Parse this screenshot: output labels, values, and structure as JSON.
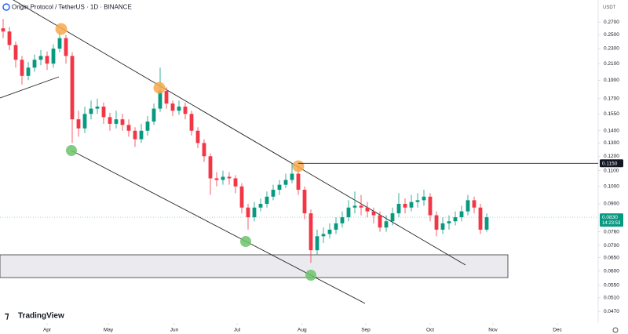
{
  "chart_data": {
    "type": "candlestick",
    "title": "Origin Protocol / TetherUS · 1D · BINANCE",
    "currency": "USDT",
    "brand": "TradingView",
    "log_scale": true,
    "grid": false,
    "up_color": "#089981",
    "down_color": "#f23645",
    "categories": [
      null,
      null,
      null,
      null,
      null,
      null,
      null,
      null,
      null,
      null,
      null,
      null,
      null,
      null,
      null,
      null,
      null,
      null,
      null,
      null,
      null,
      null,
      null,
      null,
      null,
      null,
      null,
      null,
      null,
      null,
      null,
      null,
      null,
      null,
      null,
      null,
      null,
      null,
      null,
      null,
      null,
      null,
      null,
      null,
      null,
      null,
      null,
      null,
      null,
      null,
      null,
      null,
      null,
      null,
      null,
      null,
      null,
      null,
      null,
      null,
      null,
      null,
      null,
      null,
      null,
      null,
      null,
      null,
      null,
      null,
      null,
      null,
      null,
      null,
      null,
      null,
      null,
      null
    ],
    "open": [
      0.26,
      0.255,
      0.235,
      0.215,
      0.195,
      0.205,
      0.215,
      0.22,
      0.21,
      0.23,
      0.245,
      0.22,
      0.15,
      0.142,
      0.155,
      0.16,
      0.162,
      0.152,
      0.146,
      0.15,
      0.145,
      0.14,
      0.133,
      0.14,
      0.148,
      0.16,
      0.178,
      0.165,
      0.158,
      0.162,
      0.155,
      0.14,
      0.13,
      0.12,
      0.105,
      0.104,
      0.106,
      0.105,
      0.1,
      0.088,
      0.083,
      0.088,
      0.09,
      0.094,
      0.098,
      0.101,
      0.104,
      0.108,
      0.098,
      0.085,
      0.068,
      0.074,
      0.075,
      0.077,
      0.08,
      0.083,
      0.088,
      0.089,
      0.088,
      0.086,
      0.084,
      0.078,
      0.081,
      0.085,
      0.09,
      0.088,
      0.091,
      0.092,
      0.094,
      0.084,
      0.077,
      0.08,
      0.081,
      0.083,
      0.086,
      0.092,
      0.088,
      0.077
    ],
    "high": [
      0.275,
      0.262,
      0.24,
      0.22,
      0.212,
      0.222,
      0.228,
      0.226,
      0.236,
      0.255,
      0.25,
      0.225,
      0.158,
      0.162,
      0.168,
      0.17,
      0.166,
      0.156,
      0.158,
      0.155,
      0.15,
      0.143,
      0.146,
      0.153,
      0.165,
      0.205,
      0.182,
      0.168,
      0.168,
      0.166,
      0.158,
      0.143,
      0.133,
      0.122,
      0.109,
      0.11,
      0.109,
      0.107,
      0.102,
      0.09,
      0.091,
      0.093,
      0.097,
      0.101,
      0.104,
      0.108,
      0.115,
      0.112,
      0.1,
      0.087,
      0.077,
      0.078,
      0.08,
      0.083,
      0.086,
      0.092,
      0.097,
      0.095,
      0.091,
      0.088,
      0.086,
      0.084,
      0.088,
      0.096,
      0.093,
      0.095,
      0.096,
      0.098,
      0.096,
      0.086,
      0.083,
      0.084,
      0.086,
      0.089,
      0.095,
      0.094,
      0.09,
      0.085
    ],
    "low": [
      0.245,
      0.228,
      0.205,
      0.185,
      0.19,
      0.2,
      0.208,
      0.202,
      0.205,
      0.225,
      0.21,
      0.13,
      0.135,
      0.138,
      0.15,
      0.155,
      0.146,
      0.14,
      0.142,
      0.14,
      0.135,
      0.127,
      0.13,
      0.136,
      0.145,
      0.157,
      0.16,
      0.153,
      0.154,
      0.15,
      0.136,
      0.126,
      0.116,
      0.095,
      0.1,
      0.101,
      0.101,
      0.096,
      0.085,
      0.077,
      0.081,
      0.086,
      0.088,
      0.092,
      0.095,
      0.099,
      0.102,
      0.095,
      0.082,
      0.063,
      0.066,
      0.071,
      0.073,
      0.075,
      0.078,
      0.081,
      0.085,
      0.084,
      0.083,
      0.08,
      0.076,
      0.076,
      0.079,
      0.083,
      0.085,
      0.086,
      0.088,
      0.089,
      0.081,
      0.074,
      0.075,
      0.077,
      0.079,
      0.081,
      0.084,
      0.085,
      0.075,
      0.076
    ],
    "close": [
      0.255,
      0.235,
      0.215,
      0.195,
      0.205,
      0.215,
      0.22,
      0.21,
      0.23,
      0.245,
      0.22,
      0.15,
      0.142,
      0.155,
      0.16,
      0.162,
      0.152,
      0.146,
      0.15,
      0.145,
      0.14,
      0.133,
      0.14,
      0.148,
      0.16,
      0.178,
      0.165,
      0.158,
      0.162,
      0.155,
      0.14,
      0.13,
      0.12,
      0.105,
      0.104,
      0.106,
      0.105,
      0.1,
      0.088,
      0.083,
      0.088,
      0.09,
      0.094,
      0.098,
      0.101,
      0.104,
      0.108,
      0.098,
      0.085,
      0.068,
      0.074,
      0.075,
      0.077,
      0.08,
      0.083,
      0.088,
      0.089,
      0.088,
      0.086,
      0.084,
      0.078,
      0.081,
      0.085,
      0.09,
      0.088,
      0.091,
      0.092,
      0.094,
      0.084,
      0.077,
      0.08,
      0.081,
      0.083,
      0.086,
      0.092,
      0.088,
      0.077,
      0.083
    ],
    "xlim": [
      -0.5,
      94.75
    ],
    "xticks": [
      {
        "value": 7,
        "label": "Apr"
      },
      {
        "value": 16.75,
        "label": "May"
      },
      {
        "value": 27.25,
        "label": "Jun"
      },
      {
        "value": 37.25,
        "label": "Jul"
      },
      {
        "value": 47.6,
        "label": "Aug"
      },
      {
        "value": 57.75,
        "label": "Sep"
      },
      {
        "value": 68,
        "label": "Oct"
      },
      {
        "value": 78,
        "label": "Nov"
      },
      {
        "value": 88.25,
        "label": "Dec"
      }
    ],
    "ylim": [
      0.0438,
      0.3085
    ],
    "yticks": [
      {
        "value": 0.27,
        "label": "0.2700"
      },
      {
        "value": 0.25,
        "label": "0.2500"
      },
      {
        "value": 0.23,
        "label": "0.2300"
      },
      {
        "value": 0.21,
        "label": "0.2100"
      },
      {
        "value": 0.19,
        "label": "0.1900"
      },
      {
        "value": 0.17,
        "label": "0.1700"
      },
      {
        "value": 0.155,
        "label": "0.1550"
      },
      {
        "value": 0.14,
        "label": "0.1400"
      },
      {
        "value": 0.13,
        "label": "0.1300"
      },
      {
        "value": 0.12,
        "label": "0.1200"
      },
      {
        "value": 0.11,
        "label": "0.1100"
      },
      {
        "value": 0.1,
        "label": "0.1000"
      },
      {
        "value": 0.09,
        "label": "0.0900"
      },
      {
        "value": 0.076,
        "label": "0.0760"
      },
      {
        "value": 0.07,
        "label": "0.0700"
      },
      {
        "value": 0.065,
        "label": "0.0650"
      },
      {
        "value": 0.06,
        "label": "0.0600"
      },
      {
        "value": 0.055,
        "label": "0.0550"
      },
      {
        "value": 0.051,
        "label": "0.0510"
      },
      {
        "value": 0.047,
        "label": "0.0470"
      }
    ],
    "level_line": {
      "value": 0.115,
      "label": "0.1150"
    },
    "last_price": {
      "value": 0.083,
      "label": "0.0830",
      "countdown": "14:23:53"
    }
  }
}
